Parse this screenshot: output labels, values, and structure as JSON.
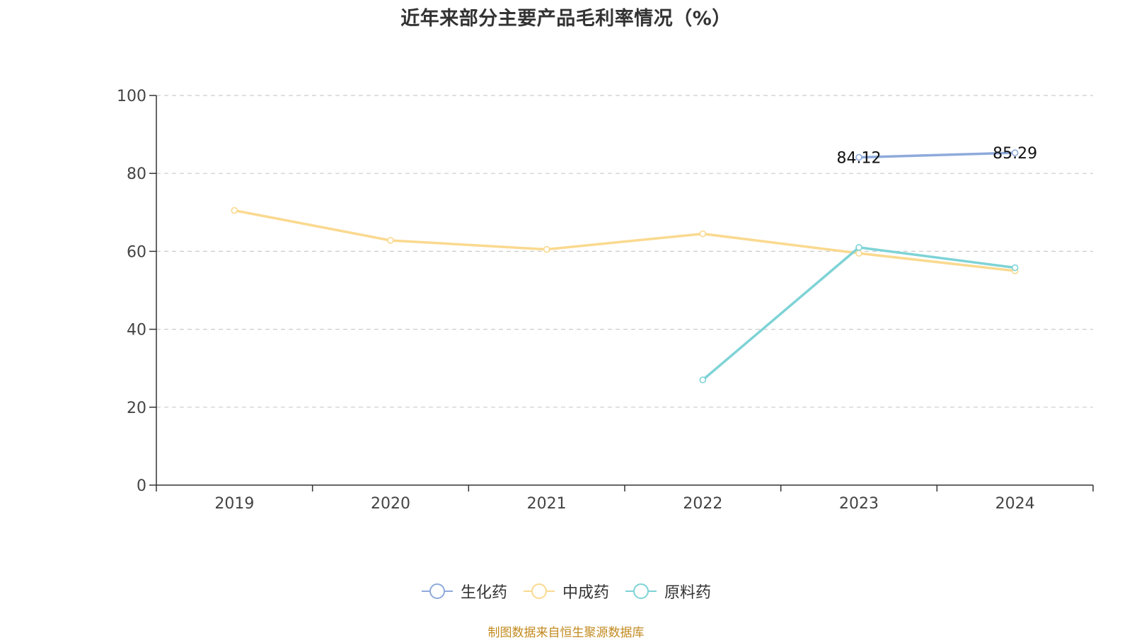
{
  "title": "近年来部分主要产品毛利率情况（%）",
  "source_note": "制图数据来自恒生聚源数据库",
  "colors": {
    "axis": "#333333",
    "grid": "#cccccc",
    "生化药": "#8eaadb",
    "中成药": "#fad98f",
    "原料药": "#7ed3d6"
  },
  "chart_data": {
    "type": "line",
    "title": "近年来部分主要产品毛利率情况（%）",
    "xlabel": "",
    "ylabel": "",
    "categories": [
      "2019",
      "2020",
      "2021",
      "2022",
      "2023",
      "2024"
    ],
    "ylim": [
      0,
      100
    ],
    "yticks": [
      0,
      20,
      40,
      60,
      80,
      100
    ],
    "grid": true,
    "legend_position": "bottom",
    "series": [
      {
        "name": "生化药",
        "color": "#8eaadb",
        "values": [
          null,
          null,
          null,
          null,
          84.12,
          85.29
        ],
        "labels": [
          null,
          null,
          null,
          null,
          "84.12",
          "85.29"
        ]
      },
      {
        "name": "中成药",
        "color": "#fad98f",
        "values": [
          70.5,
          62.8,
          60.5,
          64.5,
          59.5,
          55.0
        ],
        "labels": [
          null,
          null,
          null,
          null,
          null,
          null
        ]
      },
      {
        "name": "原料药",
        "color": "#7ed3d6",
        "values": [
          null,
          null,
          null,
          27.0,
          61.0,
          55.8
        ],
        "labels": [
          null,
          null,
          null,
          null,
          null,
          null
        ]
      }
    ]
  }
}
